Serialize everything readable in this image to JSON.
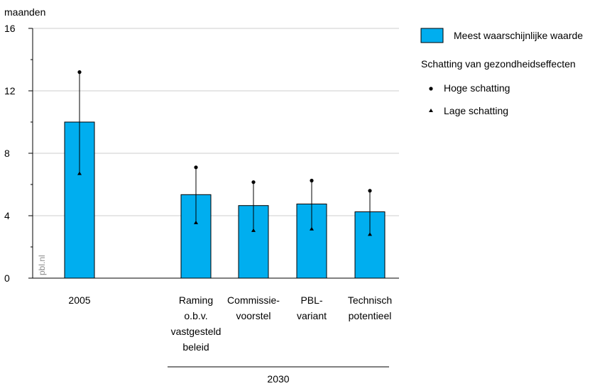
{
  "chart_data": {
    "type": "bar",
    "ylabel": "maanden",
    "ylim": [
      0,
      16
    ],
    "yticks": [
      "0",
      "4",
      "8",
      "12",
      "16"
    ],
    "grid": true,
    "bar_color": "#00aeef",
    "categories": [
      {
        "lines": [
          "2005"
        ],
        "value": 10.0,
        "high": 13.2,
        "low": 6.7
      },
      {
        "lines": [
          "Raming",
          "o.b.v.",
          "vastgesteld",
          "beleid"
        ],
        "value": 5.35,
        "high": 7.1,
        "low": 3.55
      },
      {
        "lines": [
          "Commissie-",
          "voorstel"
        ],
        "value": 4.65,
        "high": 6.15,
        "low": 3.05
      },
      {
        "lines": [
          "PBL-",
          "variant"
        ],
        "value": 4.75,
        "high": 6.25,
        "low": 3.15
      },
      {
        "lines": [
          "Technisch",
          "potentieel"
        ],
        "value": 4.25,
        "high": 5.6,
        "low": 2.8
      }
    ],
    "group_label": "2030",
    "legend": {
      "bar_label": "Meest waarschijnlijke waarde",
      "section_title": "Schatting van gezondheidseffecten",
      "high_label": "Hoge schatting",
      "low_label": "Lage schatting",
      "position": "right"
    },
    "source": "pbl.nl"
  }
}
